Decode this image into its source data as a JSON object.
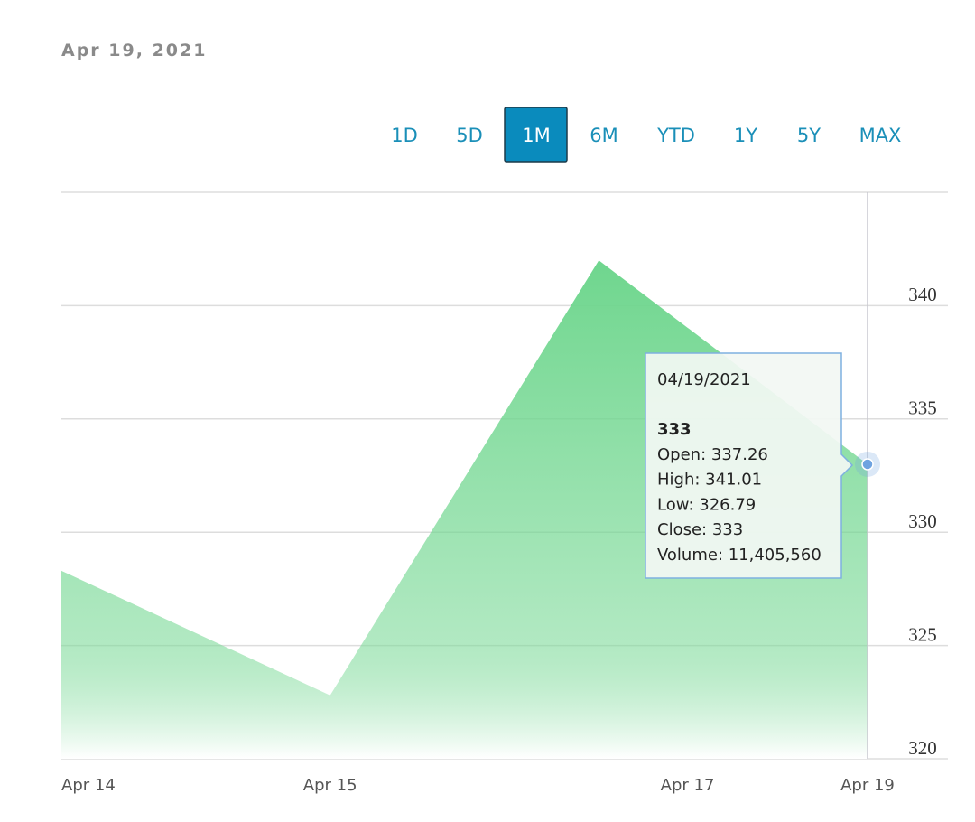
{
  "header": {
    "date": "Apr 19, 2021"
  },
  "ranges": {
    "options": [
      "1D",
      "5D",
      "1M",
      "6M",
      "YTD",
      "1Y",
      "5Y",
      "MAX"
    ],
    "selected": "1M"
  },
  "chart_data": {
    "type": "area",
    "x": [
      0,
      1,
      2,
      3
    ],
    "values": [
      328.3,
      322.8,
      342,
      333
    ],
    "color": "#6fd68e",
    "xlim": [
      0,
      3
    ],
    "xticks": [
      {
        "value": 0,
        "label": "Apr 14"
      },
      {
        "value": 1,
        "label": "Apr 15"
      },
      {
        "value": 2.33,
        "label": "Apr 17"
      },
      {
        "value": 3,
        "label": "Apr 19"
      }
    ],
    "ylim": [
      320,
      345
    ],
    "yticks": [
      320,
      325,
      330,
      335,
      340
    ],
    "grid": true,
    "tooltip": {
      "date": "04/19/2021",
      "value": "333",
      "lines": [
        "Open: 337.26",
        "High: 341.01",
        "Low: 326.79",
        "Close: 333",
        "Volume: 11,405,560"
      ]
    }
  }
}
